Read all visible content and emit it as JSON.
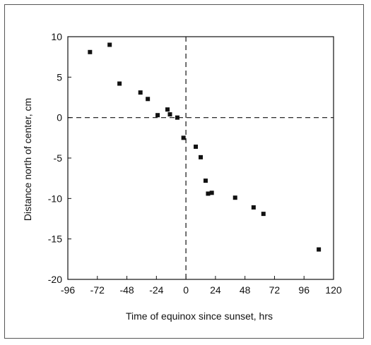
{
  "chart_data": {
    "type": "scatter",
    "xlabel": "Time of equinox since sunset, hrs",
    "ylabel": "Distance north of center, cm",
    "xlim": [
      -96,
      120
    ],
    "ylim": [
      -20,
      10
    ],
    "x_ticks": [
      -96,
      -72,
      -48,
      -24,
      0,
      24,
      48,
      72,
      96,
      120
    ],
    "x_tick_labels": [
      "-96",
      "-72",
      "-48",
      "-24",
      "0",
      "24",
      "48",
      "72",
      "96",
      "120"
    ],
    "y_ticks": [
      10,
      5,
      0,
      -5,
      -10,
      -15,
      -20
    ],
    "y_tick_labels": [
      "10",
      "5",
      "0",
      "-5",
      "-10",
      "-15",
      "-20"
    ],
    "reference_lines": {
      "x": 0,
      "y": 0,
      "style": "dashed"
    },
    "grid": false,
    "marker": "square",
    "marker_color": "#111111",
    "points": [
      {
        "x": -78,
        "y": 8.1
      },
      {
        "x": -62,
        "y": 9.0
      },
      {
        "x": -54,
        "y": 4.2
      },
      {
        "x": -37,
        "y": 3.1
      },
      {
        "x": -31,
        "y": 2.3
      },
      {
        "x": -23,
        "y": 0.3
      },
      {
        "x": -15,
        "y": 1.0
      },
      {
        "x": -13,
        "y": 0.4
      },
      {
        "x": -7,
        "y": 0.0
      },
      {
        "x": -2,
        "y": -2.5
      },
      {
        "x": 8,
        "y": -3.6
      },
      {
        "x": 12,
        "y": -4.9
      },
      {
        "x": 16,
        "y": -7.8
      },
      {
        "x": 18,
        "y": -9.4
      },
      {
        "x": 21,
        "y": -9.3
      },
      {
        "x": 40,
        "y": -9.9
      },
      {
        "x": 55,
        "y": -11.1
      },
      {
        "x": 63,
        "y": -11.9
      },
      {
        "x": 108,
        "y": -16.3
      }
    ]
  }
}
